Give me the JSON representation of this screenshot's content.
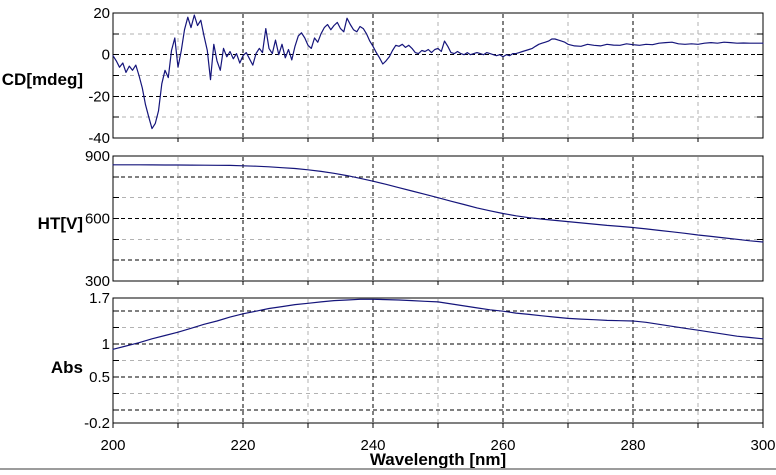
{
  "colors": {
    "curve": "#15157b",
    "grid_major": "#000000",
    "grid_minor": "#b2b2b2",
    "frame": "#000000",
    "text": "#000000",
    "bottom_line": "#9c9c9c"
  },
  "chart_data": [
    {
      "type": "line",
      "ylabel": "CD[mdeg]",
      "ylim": [
        -40,
        20
      ],
      "ytick_values": [
        20,
        0,
        -20,
        -40
      ],
      "ytick_labels": [
        "20",
        "0",
        "-20",
        "-40"
      ],
      "grid_major_y": [
        0,
        -20
      ],
      "grid_minor_y": [
        10,
        -10,
        -30
      ],
      "edge_tick_y": [
        10,
        0,
        -10,
        -20,
        -30
      ],
      "xlim": [
        200,
        300
      ],
      "grid_major_x": [
        220,
        240,
        260,
        280
      ],
      "grid_minor_x": [
        210,
        230,
        250,
        270,
        290
      ],
      "points": [
        [
          200,
          -0.5
        ],
        [
          200.5,
          -3
        ],
        [
          201,
          -6
        ],
        [
          201.5,
          -4
        ],
        [
          202,
          -8.5
        ],
        [
          202.5,
          -5.5
        ],
        [
          203,
          -7.5
        ],
        [
          203.5,
          -5
        ],
        [
          204,
          -10
        ],
        [
          204.5,
          -16
        ],
        [
          205,
          -24
        ],
        [
          205.5,
          -30
        ],
        [
          206,
          -35.5
        ],
        [
          206.5,
          -33
        ],
        [
          207,
          -27
        ],
        [
          207.5,
          -14
        ],
        [
          208,
          -7.5
        ],
        [
          208.5,
          -11
        ],
        [
          209,
          2
        ],
        [
          209.5,
          8
        ],
        [
          210,
          -6
        ],
        [
          210.5,
          2
        ],
        [
          211,
          12
        ],
        [
          211.5,
          18
        ],
        [
          212,
          13
        ],
        [
          212.5,
          19
        ],
        [
          213,
          14
        ],
        [
          213.5,
          16.5
        ],
        [
          214,
          9
        ],
        [
          214.5,
          2
        ],
        [
          215,
          -12
        ],
        [
          215.5,
          5
        ],
        [
          216,
          -3
        ],
        [
          216.5,
          -7.5
        ],
        [
          217,
          3
        ],
        [
          217.5,
          -1
        ],
        [
          218,
          1.5
        ],
        [
          218.5,
          -2
        ],
        [
          219,
          0.5
        ],
        [
          219.5,
          -4
        ],
        [
          220,
          -0.5
        ],
        [
          220.5,
          1
        ],
        [
          221,
          -2
        ],
        [
          221.5,
          -5
        ],
        [
          222,
          0.5
        ],
        [
          222.5,
          3
        ],
        [
          223,
          1
        ],
        [
          223.5,
          12.5
        ],
        [
          224,
          3
        ],
        [
          224.5,
          0.5
        ],
        [
          225,
          7
        ],
        [
          225.5,
          0
        ],
        [
          226,
          5
        ],
        [
          226.5,
          -1.5
        ],
        [
          227,
          2.5
        ],
        [
          227.5,
          -2.5
        ],
        [
          228,
          4
        ],
        [
          228.5,
          9
        ],
        [
          229,
          10.5
        ],
        [
          229.5,
          8
        ],
        [
          230,
          4.5
        ],
        [
          230.5,
          3
        ],
        [
          231,
          8
        ],
        [
          231.5,
          6
        ],
        [
          232,
          10
        ],
        [
          232.5,
          13
        ],
        [
          233,
          14.5
        ],
        [
          233.5,
          12
        ],
        [
          234,
          14
        ],
        [
          234.5,
          15.5
        ],
        [
          235,
          12.5
        ],
        [
          235.5,
          11
        ],
        [
          236,
          17.5
        ],
        [
          236.5,
          14.5
        ],
        [
          237,
          12
        ],
        [
          237.5,
          11
        ],
        [
          238,
          13.5
        ],
        [
          238.5,
          12.5
        ],
        [
          239,
          10
        ],
        [
          239.5,
          6.5
        ],
        [
          240,
          4
        ],
        [
          240.5,
          1
        ],
        [
          241,
          -1.5
        ],
        [
          241.5,
          -4.5
        ],
        [
          242,
          -3
        ],
        [
          242.5,
          -1
        ],
        [
          243,
          2
        ],
        [
          243.5,
          4.5
        ],
        [
          244,
          4
        ],
        [
          244.5,
          5
        ],
        [
          245,
          3.5
        ],
        [
          245.5,
          4.5
        ],
        [
          246,
          3
        ],
        [
          246.5,
          1
        ],
        [
          247,
          0.5
        ],
        [
          247.5,
          2
        ],
        [
          248,
          1.5
        ],
        [
          248.5,
          2.5
        ],
        [
          249,
          1
        ],
        [
          249.5,
          2.5
        ],
        [
          250,
          3
        ],
        [
          250.5,
          1.5
        ],
        [
          251,
          6.5
        ],
        [
          251.5,
          4
        ],
        [
          252,
          1
        ],
        [
          252.5,
          0.5
        ],
        [
          253,
          1.5
        ],
        [
          253.5,
          0.5
        ],
        [
          254,
          0
        ],
        [
          254.5,
          1
        ],
        [
          255,
          0
        ],
        [
          255.5,
          0.5
        ],
        [
          256,
          1
        ],
        [
          256.5,
          0.5
        ],
        [
          257,
          0
        ],
        [
          257.5,
          1
        ],
        [
          258,
          0.5
        ],
        [
          258.5,
          0
        ],
        [
          259,
          -0.5
        ],
        [
          259.5,
          0
        ],
        [
          260,
          -1
        ],
        [
          260.5,
          0
        ],
        [
          261,
          -0.5
        ],
        [
          261.5,
          0.5
        ],
        [
          262,
          0.5
        ],
        [
          262.5,
          1
        ],
        [
          263,
          1.5
        ],
        [
          263.5,
          2
        ],
        [
          264,
          2.5
        ],
        [
          264.5,
          3
        ],
        [
          265,
          4
        ],
        [
          265.5,
          5
        ],
        [
          266,
          5.5
        ],
        [
          266.5,
          6
        ],
        [
          267,
          6.5
        ],
        [
          267.5,
          7.5
        ],
        [
          268,
          7.5
        ],
        [
          268.5,
          7
        ],
        [
          269,
          6.5
        ],
        [
          269.5,
          6
        ],
        [
          270,
          5
        ],
        [
          271,
          4.2
        ],
        [
          272,
          4
        ],
        [
          273,
          5
        ],
        [
          274,
          4.5
        ],
        [
          275,
          4.2
        ],
        [
          276,
          5
        ],
        [
          277,
          4.6
        ],
        [
          278,
          4.5
        ],
        [
          279,
          5.2
        ],
        [
          280,
          4.8
        ],
        [
          281,
          4.5
        ],
        [
          282,
          5
        ],
        [
          283,
          4.8
        ],
        [
          284,
          5.5
        ],
        [
          285,
          5.8
        ],
        [
          286,
          6
        ],
        [
          287,
          5.2
        ],
        [
          288,
          5
        ],
        [
          289,
          5.2
        ],
        [
          290,
          5
        ],
        [
          291,
          5.5
        ],
        [
          292,
          5.8
        ],
        [
          293,
          5.5
        ],
        [
          294,
          6
        ],
        [
          295,
          5.8
        ],
        [
          296,
          5.5
        ],
        [
          297,
          5.6
        ],
        [
          298,
          5.5
        ],
        [
          299,
          5.5
        ],
        [
          300,
          5.5
        ]
      ]
    },
    {
      "type": "line",
      "ylabel": "HT[V]",
      "ylim": [
        300,
        900
      ],
      "ytick_values": [
        900,
        600,
        300
      ],
      "ytick_labels": [
        "900",
        "600",
        "300"
      ],
      "grid_major_y": [
        800,
        600,
        400
      ],
      "grid_minor_y": [
        700,
        500
      ],
      "edge_tick_y": [
        800,
        700,
        600,
        500,
        400
      ],
      "xlim": [
        200,
        300
      ],
      "grid_major_x": [
        220,
        240,
        260,
        280
      ],
      "grid_minor_x": [
        210,
        230,
        250,
        270,
        290
      ],
      "points": [
        [
          200,
          858
        ],
        [
          202,
          858
        ],
        [
          204,
          858
        ],
        [
          206,
          857.5
        ],
        [
          208,
          857
        ],
        [
          210,
          857
        ],
        [
          212,
          856.5
        ],
        [
          214,
          856
        ],
        [
          216,
          855.5
        ],
        [
          218,
          855
        ],
        [
          220,
          853
        ],
        [
          222,
          851
        ],
        [
          224,
          848
        ],
        [
          226,
          844
        ],
        [
          228,
          840
        ],
        [
          230,
          834
        ],
        [
          232,
          826
        ],
        [
          234,
          817
        ],
        [
          236,
          806
        ],
        [
          238,
          793
        ],
        [
          240,
          779
        ],
        [
          242,
          764
        ],
        [
          244,
          748
        ],
        [
          246,
          732
        ],
        [
          248,
          716
        ],
        [
          250,
          700
        ],
        [
          252,
          683
        ],
        [
          254,
          667
        ],
        [
          256,
          651
        ],
        [
          258,
          637
        ],
        [
          260,
          624
        ],
        [
          262,
          613
        ],
        [
          264,
          604
        ],
        [
          266,
          597
        ],
        [
          268,
          591
        ],
        [
          270,
          585
        ],
        [
          272,
          579
        ],
        [
          274,
          573
        ],
        [
          276,
          567
        ],
        [
          278,
          562
        ],
        [
          280,
          557
        ],
        [
          282,
          550
        ],
        [
          284,
          543
        ],
        [
          286,
          536
        ],
        [
          288,
          529
        ],
        [
          290,
          521
        ],
        [
          292,
          514
        ],
        [
          294,
          507
        ],
        [
          296,
          500
        ],
        [
          298,
          493
        ],
        [
          300,
          487
        ]
      ]
    },
    {
      "type": "line",
      "ylabel": "Abs",
      "xlabel": "Wavelength [nm]",
      "ylim": [
        -0.2,
        1.7
      ],
      "ytick_values": [
        1.7,
        1,
        0.5,
        -0.2
      ],
      "ytick_labels": [
        "1.7",
        "1",
        "0.5",
        "-0.2"
      ],
      "grid_major_y": [
        1.5,
        1,
        0.5,
        0
      ],
      "grid_minor_y": [
        1.25,
        0.75,
        0.25
      ],
      "edge_tick_y": [
        1.5,
        1.25,
        1,
        0.75,
        0.5,
        0.25,
        0
      ],
      "xlim": [
        200,
        300
      ],
      "grid_major_x": [
        220,
        240,
        260,
        280
      ],
      "grid_minor_x": [
        210,
        230,
        250,
        270,
        290
      ],
      "xtick_values": [
        200,
        220,
        240,
        260,
        280,
        300
      ],
      "xtick_labels": [
        "200",
        "220",
        "240",
        "260",
        "280",
        "300"
      ],
      "xtick_minor": [
        210,
        230,
        250,
        270,
        290
      ],
      "points": [
        [
          200,
          0.92
        ],
        [
          202,
          0.97
        ],
        [
          204,
          1.02
        ],
        [
          206,
          1.08
        ],
        [
          208,
          1.13
        ],
        [
          210,
          1.18
        ],
        [
          212,
          1.24
        ],
        [
          214,
          1.3
        ],
        [
          216,
          1.35
        ],
        [
          218,
          1.41
        ],
        [
          220,
          1.46
        ],
        [
          222,
          1.5
        ],
        [
          224,
          1.54
        ],
        [
          226,
          1.57
        ],
        [
          228,
          1.6
        ],
        [
          230,
          1.62
        ],
        [
          232,
          1.64
        ],
        [
          234,
          1.66
        ],
        [
          236,
          1.67
        ],
        [
          238,
          1.68
        ],
        [
          240,
          1.68
        ],
        [
          242,
          1.675
        ],
        [
          244,
          1.67
        ],
        [
          246,
          1.66
        ],
        [
          248,
          1.65
        ],
        [
          250,
          1.64
        ],
        [
          252,
          1.61
        ],
        [
          254,
          1.58
        ],
        [
          256,
          1.55
        ],
        [
          258,
          1.52
        ],
        [
          260,
          1.5
        ],
        [
          262,
          1.47
        ],
        [
          264,
          1.45
        ],
        [
          266,
          1.43
        ],
        [
          268,
          1.41
        ],
        [
          270,
          1.39
        ],
        [
          272,
          1.38
        ],
        [
          274,
          1.37
        ],
        [
          276,
          1.36
        ],
        [
          278,
          1.355
        ],
        [
          280,
          1.35
        ],
        [
          282,
          1.33
        ],
        [
          284,
          1.3
        ],
        [
          286,
          1.27
        ],
        [
          288,
          1.24
        ],
        [
          290,
          1.21
        ],
        [
          292,
          1.18
        ],
        [
          294,
          1.15
        ],
        [
          296,
          1.12
        ],
        [
          298,
          1.1
        ],
        [
          300,
          1.08
        ]
      ]
    }
  ]
}
